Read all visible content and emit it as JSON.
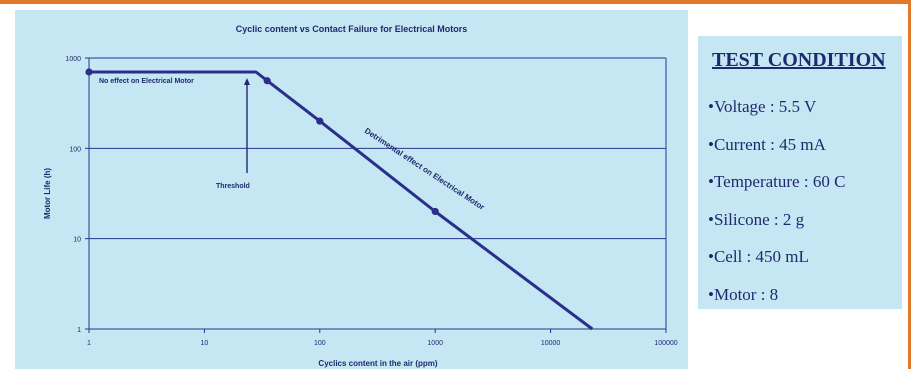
{
  "chart_data": {
    "type": "line",
    "title": "Cyclic content vs Contact Failure for Electrical Motors",
    "xlabel": "Cyclics content in the air (ppm)",
    "ylabel": "Motor Life (h)",
    "x_scale": "log",
    "y_scale": "log",
    "xlim": [
      1,
      100000
    ],
    "ylim": [
      1,
      1000
    ],
    "x_ticks": [
      "1",
      "10",
      "100",
      "1000",
      "10000",
      "100000"
    ],
    "y_ticks": [
      "1",
      "10",
      "100",
      "1000"
    ],
    "grid": "horizontal",
    "series": [
      {
        "color": "#2a2f8c",
        "x": [
          1,
          28,
          35,
          100,
          1000,
          23000
        ],
        "y": [
          700,
          700,
          560,
          200,
          20,
          1
        ]
      }
    ],
    "markers": [
      {
        "x": 1,
        "y": 700
      },
      {
        "x": 35,
        "y": 560
      },
      {
        "x": 100,
        "y": 200
      },
      {
        "x": 1000,
        "y": 20
      }
    ],
    "annotations": {
      "no_effect": "No effect on Electrical Motor",
      "detrimental": "Detrimental effect on Electrical Motor",
      "threshold": "Threshold"
    }
  },
  "test_condition": {
    "heading": "TEST CONDITION",
    "items": [
      "•Voltage : 5.5 V",
      "•Current : 45 mA",
      "•Temperature : 60 C",
      "•Silicone : 2 g",
      "•Cell : 450 mL",
      "•Motor : 8"
    ]
  },
  "colors": {
    "accent_border": "#e07a2a",
    "panel_bg": "#c5e6f3",
    "ink": "#1f2a6e",
    "line": "#2a2f8c"
  }
}
